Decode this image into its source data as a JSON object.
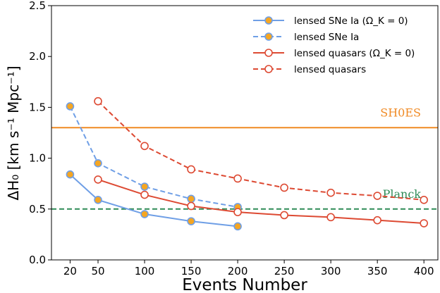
{
  "chart_data": {
    "type": "line",
    "xlabel": "Events Number",
    "ylabel": "ΔH₀ [km s⁻¹ Mpc⁻¹]",
    "xticks": [
      20,
      50,
      100,
      150,
      200,
      250,
      300,
      350,
      400
    ],
    "yticks": [
      "0.0",
      "0.5",
      "1.0",
      "1.5",
      "2.0",
      "2.5"
    ],
    "xlim": [
      0,
      415
    ],
    "ylim": [
      0,
      2.5
    ],
    "legend_position": "top-right",
    "series": [
      {
        "name": "lensed SNe Ia (Ω_K = 0)",
        "style": "solid",
        "marker": "filled",
        "color": "#6f9fe6",
        "fill": "#f5a623",
        "x": [
          20,
          50,
          100,
          150,
          200
        ],
        "y": [
          0.84,
          0.59,
          0.45,
          0.38,
          0.33
        ]
      },
      {
        "name": "lensed SNe Ia",
        "style": "dashed",
        "marker": "filled",
        "color": "#6f9fe6",
        "fill": "#f5a623",
        "x": [
          20,
          50,
          100,
          150,
          200
        ],
        "y": [
          1.51,
          0.95,
          0.72,
          0.6,
          0.52
        ]
      },
      {
        "name": "lensed quasars (Ω_K = 0)",
        "style": "solid",
        "marker": "open",
        "color": "#dd4a33",
        "fill": "#ffffff",
        "x": [
          50,
          100,
          150,
          200,
          250,
          300,
          350,
          400
        ],
        "y": [
          0.79,
          0.64,
          0.53,
          0.47,
          0.44,
          0.42,
          0.39,
          0.36
        ]
      },
      {
        "name": "lensed quasars",
        "style": "dashed",
        "marker": "open",
        "color": "#dd4a33",
        "fill": "#ffffff",
        "x": [
          50,
          100,
          150,
          200,
          250,
          300,
          350,
          400
        ],
        "y": [
          1.56,
          1.12,
          0.89,
          0.8,
          0.71,
          0.66,
          0.63,
          0.59
        ]
      }
    ],
    "reference_lines": [
      {
        "label": "SH0ES",
        "y": 1.3,
        "style": "solid",
        "color": "#f08a24"
      },
      {
        "label": "Planck",
        "y": 0.5,
        "style": "dashed",
        "color": "#2e8b57"
      }
    ]
  }
}
